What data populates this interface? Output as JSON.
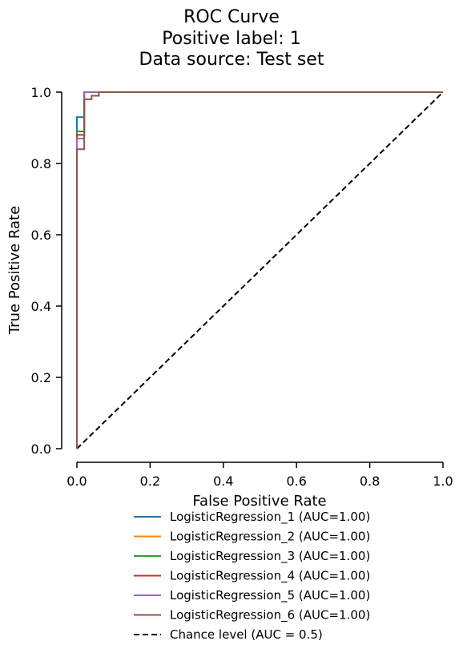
{
  "chart_data": {
    "type": "line",
    "title": [
      "ROC Curve",
      "Positive label: 1",
      "Data source: Test set"
    ],
    "xlabel": "False Positive Rate",
    "ylabel": "True Positive Rate",
    "xlim": [
      0,
      1
    ],
    "ylim": [
      0,
      1
    ],
    "xticks": [
      "0.0",
      "0.2",
      "0.4",
      "0.6",
      "0.8",
      "1.0"
    ],
    "yticks": [
      "0.0",
      "0.2",
      "0.4",
      "0.6",
      "0.8",
      "1.0"
    ],
    "grid": false,
    "legend_position": "below",
    "series": [
      {
        "name": "LogisticRegression_1 (AUC=1.00)",
        "color": "#1f77b4",
        "x": [
          0,
          0,
          0.02,
          0.02,
          0.06,
          1.0
        ],
        "y": [
          0,
          0.93,
          0.93,
          1.0,
          1.0,
          1.0
        ]
      },
      {
        "name": "LogisticRegression_2 (AUC=1.00)",
        "color": "#ff7f0e",
        "x": [
          0,
          0,
          0.02,
          0.02,
          1.0
        ],
        "y": [
          0,
          0.89,
          0.89,
          1.0,
          1.0
        ]
      },
      {
        "name": "LogisticRegression_3 (AUC=1.00)",
        "color": "#2ca02c",
        "x": [
          0,
          0,
          0.02,
          0.02,
          1.0
        ],
        "y": [
          0,
          0.89,
          0.89,
          1.0,
          1.0
        ]
      },
      {
        "name": "LogisticRegression_4 (AUC=1.00)",
        "color": "#d62728",
        "x": [
          0,
          0,
          0.02,
          0.02,
          1.0
        ],
        "y": [
          0,
          0.88,
          0.88,
          1.0,
          1.0
        ]
      },
      {
        "name": "LogisticRegression_5 (AUC=1.00)",
        "color": "#9467bd",
        "x": [
          0,
          0,
          0.02,
          0.02,
          1.0
        ],
        "y": [
          0,
          0.87,
          0.87,
          1.0,
          1.0
        ]
      },
      {
        "name": "LogisticRegression_6 (AUC=1.00)",
        "color": "#8c564b",
        "x": [
          0,
          0,
          0.02,
          0.02,
          0.04,
          0.04,
          0.06,
          0.06,
          1.0
        ],
        "y": [
          0,
          0.84,
          0.84,
          0.98,
          0.98,
          0.99,
          0.99,
          1.0,
          1.0
        ]
      }
    ],
    "chance_line": {
      "name": "Chance level (AUC = 0.5)",
      "color": "#000000",
      "x": [
        0,
        1
      ],
      "y": [
        0,
        1
      ]
    }
  }
}
